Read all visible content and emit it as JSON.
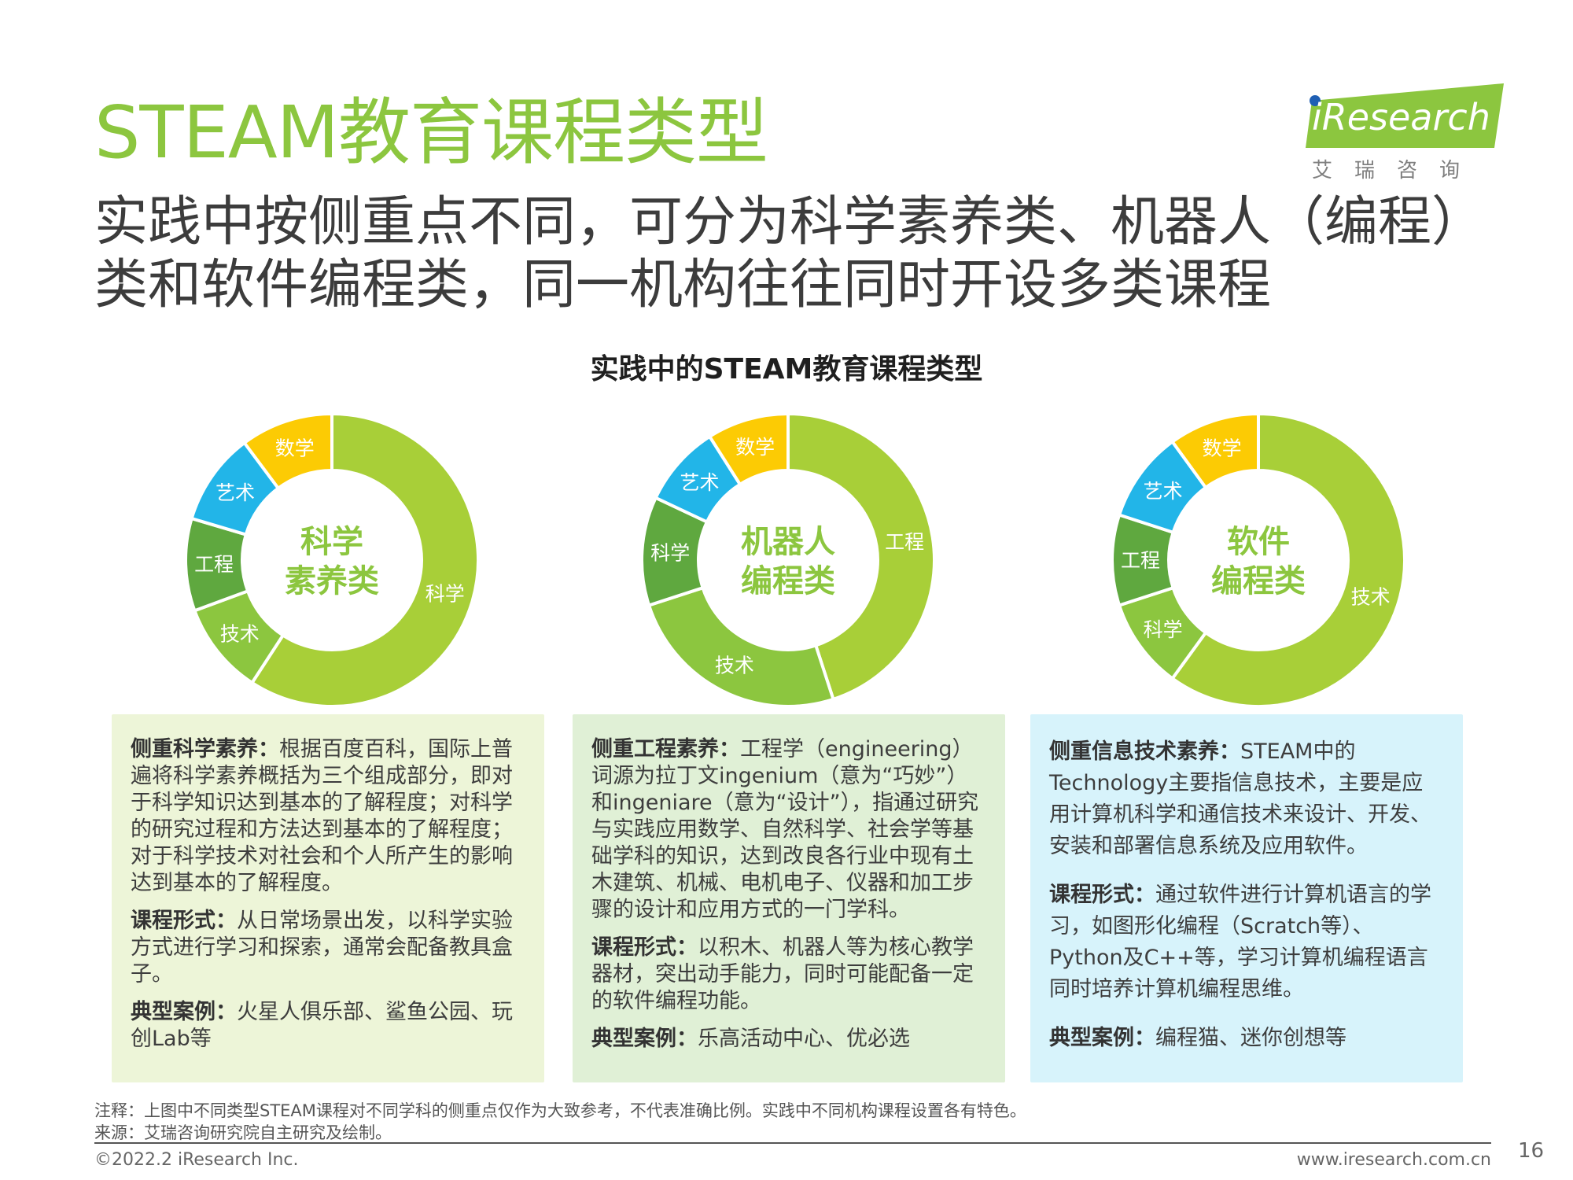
{
  "title": "STEAM教育课程类型",
  "subtitle": {
    "line1": "实践中按侧重点不同，可分为科学素养类、机器人（编程）",
    "line2": "类和软件编程类，同一机构往往同时开设多类课程"
  },
  "logo": {
    "text": "iResearch",
    "cn": "艾瑞咨询"
  },
  "chart_data": [
    {
      "type": "pie",
      "title": "实践中的STEAM教育课程类型",
      "center_label": [
        "科学",
        "素养类"
      ],
      "categories": [
        "科学",
        "技术",
        "工程",
        "艺术",
        "数学"
      ],
      "values": [
        58,
        10,
        10,
        10,
        10
      ],
      "colors": [
        "#a8cf38",
        "#8cc63f",
        "#5fa83f",
        "#22b5e8",
        "#fccb04"
      ]
    },
    {
      "type": "pie",
      "center_label": [
        "机器人",
        "编程类"
      ],
      "categories": [
        "工程",
        "技术",
        "科学",
        "艺术",
        "数学"
      ],
      "values": [
        45,
        25,
        12,
        9,
        9
      ],
      "colors": [
        "#a8cf38",
        "#8cc63f",
        "#5fa83f",
        "#22b5e8",
        "#fccb04"
      ]
    },
    {
      "type": "pie",
      "center_label": [
        "软件",
        "编程类"
      ],
      "categories": [
        "技术",
        "科学",
        "工程",
        "艺术",
        "数学"
      ],
      "values": [
        60,
        10,
        10,
        10,
        10
      ],
      "colors": [
        "#a8cf38",
        "#8cc63f",
        "#5fa83f",
        "#22b5e8",
        "#fccb04"
      ]
    }
  ],
  "boxes": [
    {
      "focus_head": "侧重科学素养：",
      "focus_text": "根据百度百科，国际上普遍将科学素养概括为三个组成部分，即对于科学知识达到基本的了解程度；对科学的研究过程和方法达到基本的了解程度；对于科学技术对社会和个人所产生的影响达到基本的了解程度。",
      "form_head": "课程形式：",
      "form_text": "从日常场景出发，以科学实验方式进行学习和探索，通常会配备教具盒子。",
      "case_head": "典型案例：",
      "case_text": "火星人俱乐部、鲨鱼公园、玩创Lab等"
    },
    {
      "focus_head": "侧重工程素养：",
      "focus_text": "工程学（engineering）词源为拉丁文ingenium（意为“巧妙”）和ingeniare（意为“设计”），指通过研究与实践应用数学、自然科学、社会学等基础学科的知识，达到改良各行业中现有土木建筑、机械、电机电子、仪器和加工步骤的设计和应用方式的一门学科。",
      "form_head": "课程形式：",
      "form_text": "以积木、机器人等为核心教学器材，突出动手能力，同时可能配备一定的软件编程功能。",
      "case_head": "典型案例：",
      "case_text": "乐高活动中心、优必选"
    },
    {
      "focus_head": "侧重信息技术素养：",
      "focus_text": "STEAM中的Technology主要指信息技术，主要是应用计算机科学和通信技术来设计、开发、安装和部署信息系统及应用软件。",
      "form_head": "课程形式：",
      "form_text": "通过软件进行计算机语言的学习，如图形化编程（Scratch等）、Python及C++等，学习计算机编程语言同时培养计算机编程思维。",
      "case_head": "典型案例：",
      "case_text": "编程猫、迷你创想等"
    }
  ],
  "footer": {
    "note": "注释：上图中不同类型STEAM课程对不同学科的侧重点仅作为大致参考，不代表准确比例。实践中不同机构课程设置各有特色。",
    "source": "来源：艾瑞咨询研究院自主研究及绘制。",
    "copyright": "©2022.2 iResearch Inc.",
    "website": "www.iresearch.com.cn",
    "page": "16"
  }
}
